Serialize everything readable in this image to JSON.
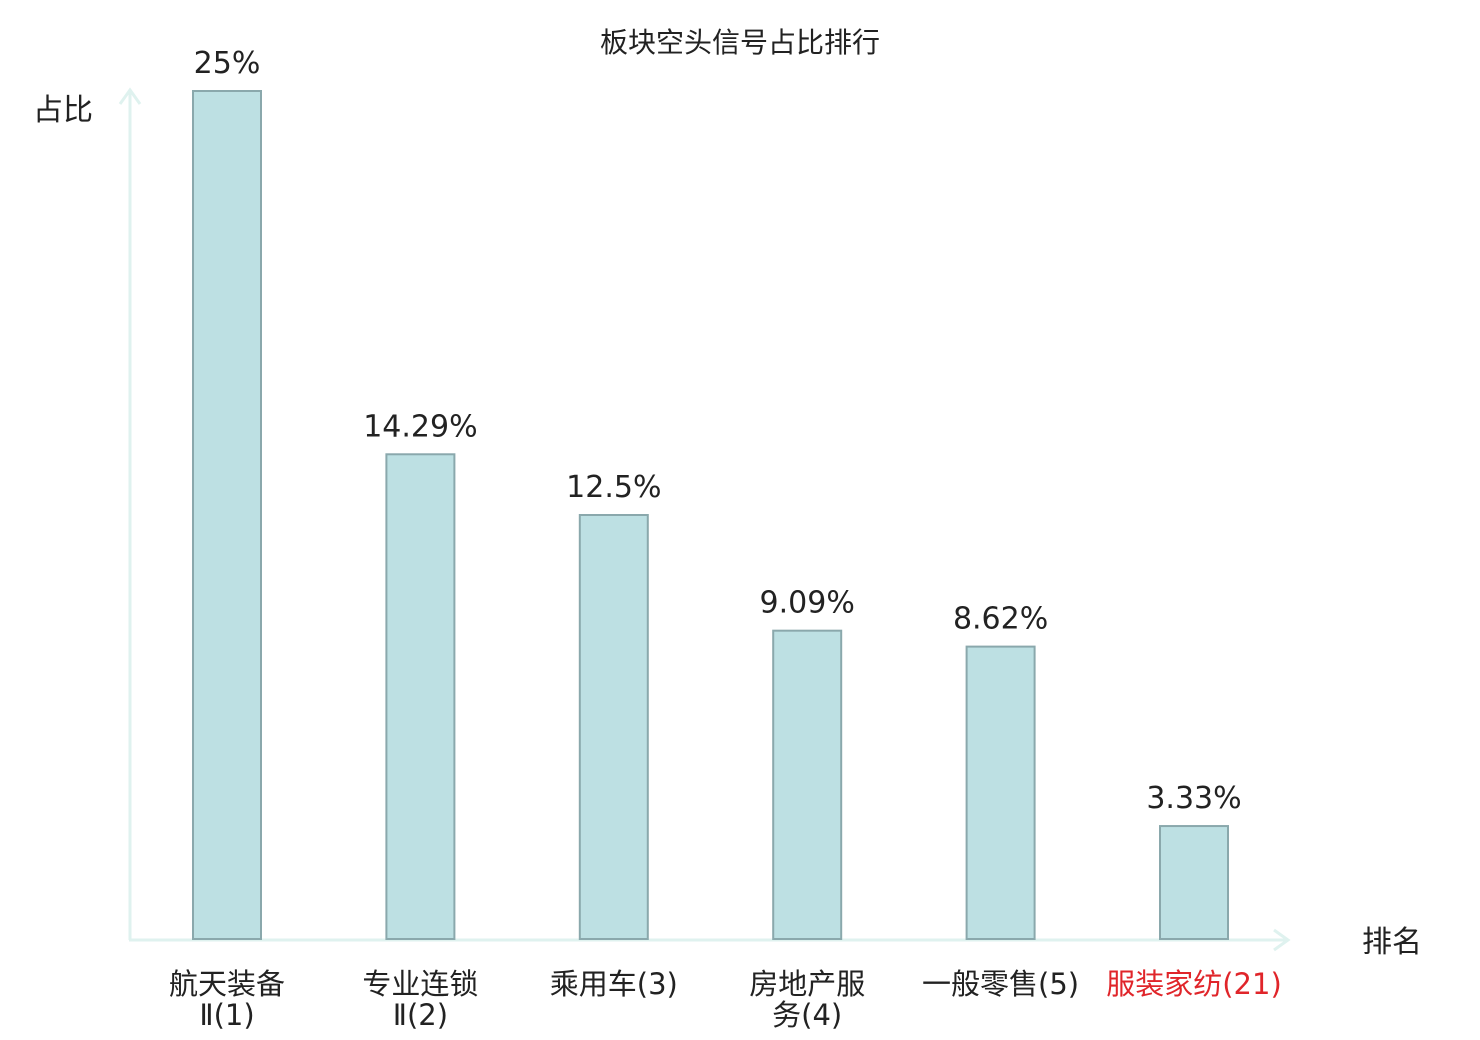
{
  "chart_data": {
    "type": "bar",
    "title": "板块空头信号占比排行",
    "xlabel": "排名",
    "ylabel": "占比",
    "ylim": [
      0,
      25
    ],
    "grid": false,
    "legend": "none",
    "categories": [
      {
        "lines": [
          "航天装备",
          "Ⅱ(1)"
        ],
        "highlight": false
      },
      {
        "lines": [
          "专业连锁",
          "Ⅱ(2)"
        ],
        "highlight": false
      },
      {
        "lines": [
          "乘用车(3)"
        ],
        "highlight": false
      },
      {
        "lines": [
          "房地产服",
          "务(4)"
        ],
        "highlight": false
      },
      {
        "lines": [
          "一般零售(5)"
        ],
        "highlight": false
      },
      {
        "lines": [
          "服装家纺(21)"
        ],
        "highlight": true
      }
    ],
    "values": [
      25,
      14.29,
      12.5,
      9.09,
      8.62,
      3.33
    ],
    "value_labels": [
      "25%",
      "14.29%",
      "12.5%",
      "9.09%",
      "8.62%",
      "3.33%"
    ],
    "colors": {
      "bar_fill": "#bde0e3",
      "bar_stroke": "#8aa8ac",
      "axis": "#dff2ef",
      "text": "#222222",
      "highlight_text": "#e0252a"
    }
  }
}
